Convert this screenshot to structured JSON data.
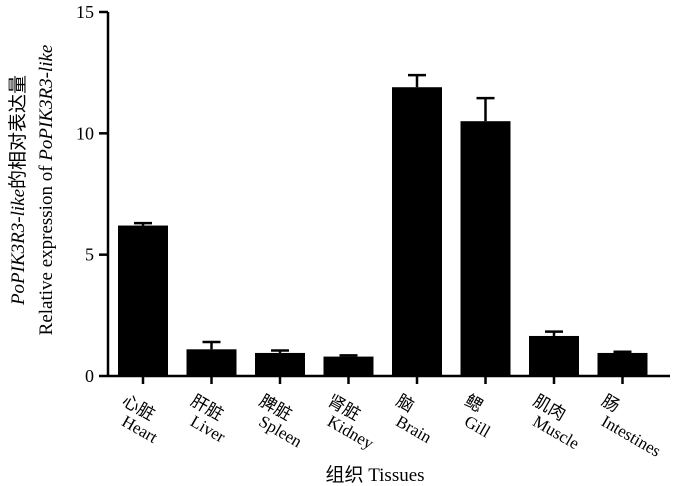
{
  "chart_data": {
    "type": "bar",
    "categories": [
      {
        "cn": "心脏",
        "en": "Heart"
      },
      {
        "cn": "肝脏",
        "en": "Liver"
      },
      {
        "cn": "脾脏",
        "en": "Spleen"
      },
      {
        "cn": "肾脏",
        "en": "Kidney"
      },
      {
        "cn": "脑",
        "en": "Brain"
      },
      {
        "cn": "鳃",
        "en": "Gill"
      },
      {
        "cn": "肌肉",
        "en": "Muscle"
      },
      {
        "cn": "肠",
        "en": "Intestines"
      }
    ],
    "values": [
      6.2,
      1.1,
      0.95,
      0.8,
      11.9,
      10.5,
      1.65,
      0.95
    ],
    "errors": [
      0.1,
      0.3,
      0.1,
      0.05,
      0.5,
      0.95,
      0.18,
      0.05
    ],
    "xlabel": "组织 Tissues",
    "ylabel_line1_italic": "PoPIK3R3-like",
    "ylabel_line1_rest": "的相对表达量",
    "ylabel_line2_plain": "Relative expression of ",
    "ylabel_line2_italic": "PoPIK3R3-like",
    "ylim": [
      0,
      15
    ],
    "yticks": [
      0,
      5,
      10,
      15
    ],
    "bar_color": "#000000",
    "grid": false
  }
}
